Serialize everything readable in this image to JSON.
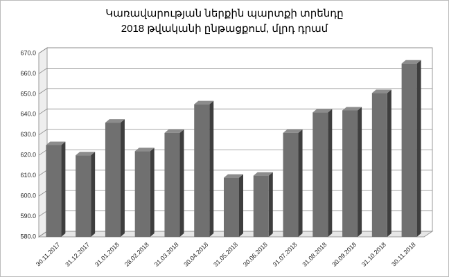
{
  "chart_data": {
    "type": "bar3d",
    "title": [
      "Կառավարության ներքին պարտքի տրենդը",
      "2018 թվականի ընթացքում, մլրդ դրամ"
    ],
    "categories": [
      "30.11.2017",
      "31.12.2017",
      "31.01.2018",
      "28.02.2018",
      "31.03.2018",
      "30.04.2018",
      "31.05.2018",
      "30.06.2018",
      "31.07.2018",
      "31.08.2018",
      "30.09.2018",
      "31.10.2018",
      "30.11.2018"
    ],
    "values": [
      625,
      620,
      636,
      622,
      631,
      645,
      609,
      610,
      631,
      641,
      642,
      650.5,
      665
    ],
    "color": "#707070",
    "ylim": [
      580,
      670
    ],
    "yticks": [
      {
        "value": 580,
        "label": "580.0"
      },
      {
        "value": 590,
        "label": "590.0"
      },
      {
        "value": 600,
        "label": "600.0"
      },
      {
        "value": 610,
        "label": "610.0"
      },
      {
        "value": 620,
        "label": "620.0"
      },
      {
        "value": 630,
        "label": "630.0"
      },
      {
        "value": 640,
        "label": "640.0"
      },
      {
        "value": 650,
        "label": "650.0"
      },
      {
        "value": 660,
        "label": "660.0"
      },
      {
        "value": 670,
        "label": "670.0"
      }
    ],
    "grid": true
  }
}
